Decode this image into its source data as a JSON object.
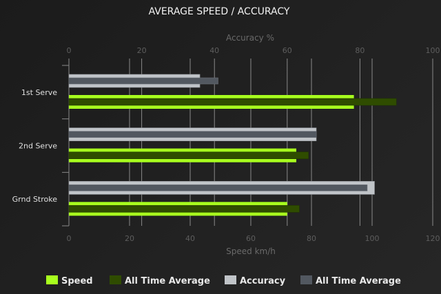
{
  "chart_data": {
    "type": "bar",
    "orientation": "horizontal",
    "title": "AVERAGE SPEED / ACCURACY",
    "categories": [
      "1st Serve",
      "2nd Serve",
      "Grnd Stroke"
    ],
    "x_top_axis": {
      "label": "Accuracy %",
      "range": [
        0,
        100
      ],
      "ticks": [
        0,
        20,
        40,
        60,
        80,
        100
      ]
    },
    "x_bottom_axis": {
      "label": "Speed km/h",
      "range": [
        0,
        120
      ],
      "ticks": [
        0,
        20,
        40,
        60,
        80,
        100,
        120
      ]
    },
    "grid": true,
    "legend_position": "bottom",
    "series": [
      {
        "name": "Speed",
        "axis": "bottom",
        "color": "#a8ff1e",
        "values": [
          94,
          75,
          72
        ]
      },
      {
        "name": "All Time Average",
        "axis": "bottom",
        "color": "#2f4c00",
        "values": [
          108,
          79,
          76
        ]
      },
      {
        "name": "Accuracy",
        "axis": "top",
        "color": "#c0c4c8",
        "values": [
          36,
          68,
          84
        ]
      },
      {
        "name": "All Time Average",
        "axis": "top",
        "color": "#525860",
        "values": [
          41,
          68,
          82
        ]
      }
    ]
  }
}
